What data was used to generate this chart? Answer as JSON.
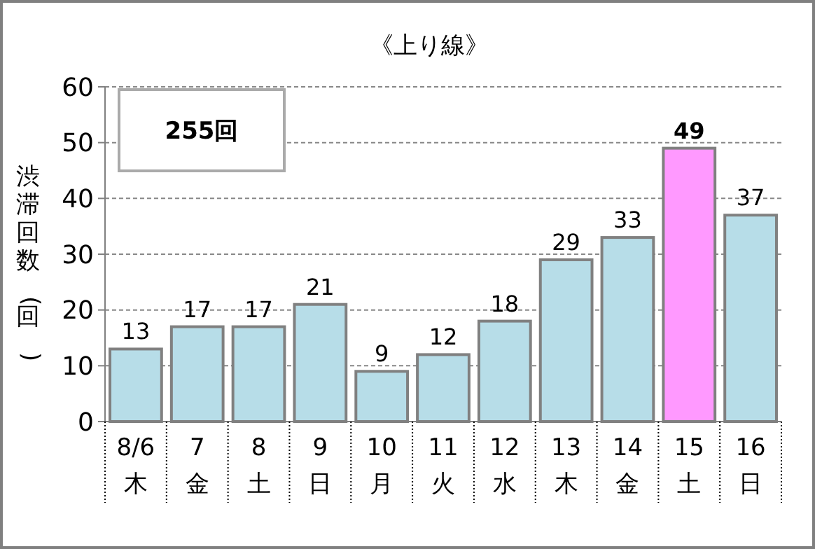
{
  "chart_data": {
    "type": "bar",
    "title": "《上り線》",
    "ylabel": "渋滞回数(回)",
    "categories": [
      "8/6\n木",
      "7\n金",
      "8\n土",
      "9\n日",
      "10\n月",
      "11\n火",
      "12\n水",
      "13\n木",
      "14\n金",
      "15\n土",
      "16\n日"
    ],
    "values": [
      13,
      17,
      17,
      21,
      9,
      12,
      18,
      29,
      33,
      49,
      37
    ],
    "colors": [
      "#b7dde8",
      "#b7dde8",
      "#b7dde8",
      "#b7dde8",
      "#b7dde8",
      "#b7dde8",
      "#b7dde8",
      "#b7dde8",
      "#b7dde8",
      "#ff99ff",
      "#b7dde8"
    ],
    "ylim": [
      0,
      60
    ],
    "yticks": [
      0,
      10,
      20,
      30,
      40,
      50,
      60
    ],
    "grid": "y",
    "data_labels": true,
    "annotations": [
      "255回"
    ]
  }
}
